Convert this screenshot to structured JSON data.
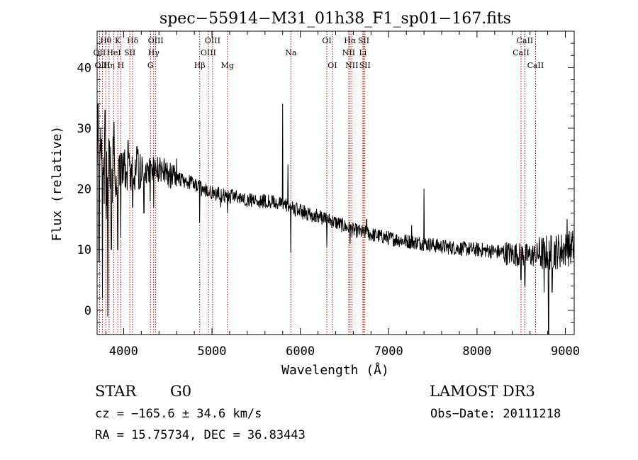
{
  "chart_data": {
    "type": "line",
    "title": "spec−55914−M31_01h38_F1_sp01−167.fits",
    "xlabel": "Wavelength (Å)",
    "ylabel": "Flux (relative)",
    "xlim": [
      3700,
      9100
    ],
    "ylim": [
      -4,
      46
    ],
    "xticks": [
      4000,
      5000,
      6000,
      7000,
      8000,
      9000
    ],
    "xtick_labels": [
      "4000",
      "5000",
      "6000",
      "7000",
      "8000",
      "9000"
    ],
    "yticks": [
      0,
      10,
      20,
      30,
      40
    ],
    "ytick_labels": [
      "0",
      "10",
      "20",
      "30",
      "40"
    ],
    "continuum": [
      [
        3700,
        22
      ],
      [
        3800,
        21
      ],
      [
        3900,
        22
      ],
      [
        4000,
        23
      ],
      [
        4100,
        23.2
      ],
      [
        4200,
        23
      ],
      [
        4400,
        23
      ],
      [
        4600,
        21.8
      ],
      [
        4800,
        20.8
      ],
      [
        4900,
        19.8
      ],
      [
        5000,
        19.3
      ],
      [
        5200,
        18.8
      ],
      [
        5400,
        18.2
      ],
      [
        5600,
        18
      ],
      [
        5800,
        17.5
      ],
      [
        6000,
        16.3
      ],
      [
        6200,
        15.5
      ],
      [
        6400,
        14.5
      ],
      [
        6600,
        13.2
      ],
      [
        6800,
        12.5
      ],
      [
        7000,
        11.9
      ],
      [
        7200,
        11.4
      ],
      [
        7400,
        11
      ],
      [
        7600,
        10.5
      ],
      [
        7800,
        10.2
      ],
      [
        8000,
        10
      ],
      [
        8200,
        9.7
      ],
      [
        8400,
        9.3
      ],
      [
        8600,
        9
      ],
      [
        8800,
        9.5
      ],
      [
        9000,
        10
      ],
      [
        9100,
        10.5
      ]
    ],
    "features": [
      [
        3710,
        34
      ],
      [
        3722,
        8
      ],
      [
        3740,
        30
      ],
      [
        3760,
        2
      ],
      [
        3790,
        33
      ],
      [
        3820,
        -1
      ],
      [
        3835,
        28
      ],
      [
        3862,
        10
      ],
      [
        3890,
        31
      ],
      [
        3934,
        10
      ],
      [
        3968,
        12
      ],
      [
        4005,
        26
      ],
      [
        4050,
        28
      ],
      [
        4102,
        17
      ],
      [
        4150,
        27
      ],
      [
        4230,
        16
      ],
      [
        4300,
        18
      ],
      [
        4341,
        17
      ],
      [
        4400,
        24
      ],
      [
        4470,
        23
      ],
      [
        4600,
        25
      ],
      [
        4861,
        14.5
      ],
      [
        5100,
        17
      ],
      [
        5175,
        16
      ],
      [
        5800,
        34
      ],
      [
        5860,
        24
      ],
      [
        5893,
        9.5
      ],
      [
        6300,
        10.5
      ],
      [
        6563,
        11
      ],
      [
        6750,
        15
      ],
      [
        7260,
        14
      ],
      [
        7400,
        20
      ],
      [
        8498,
        5
      ],
      [
        8542,
        4
      ],
      [
        8662,
        8
      ],
      [
        8760,
        3
      ],
      [
        8810,
        -4
      ],
      [
        8850,
        3
      ],
      [
        9020,
        15
      ]
    ],
    "lines": [
      {
        "name": "Hθ",
        "wave": 3798,
        "row": 0
      },
      {
        "name": "K",
        "wave": 3934,
        "row": 0
      },
      {
        "name": "Hδ",
        "wave": 4102,
        "row": 0
      },
      {
        "name": "OIII",
        "wave": 4363,
        "row": 0
      },
      {
        "name": "OIII",
        "wave": 5007,
        "row": 0
      },
      {
        "name": "OI",
        "wave": 6300,
        "row": 0
      },
      {
        "name": "Hα",
        "wave": 6563,
        "row": 0
      },
      {
        "name": "SII",
        "wave": 6717,
        "row": 0
      },
      {
        "name": "CaII",
        "wave": 8542,
        "row": 0
      },
      {
        "name": "OII",
        "wave": 3727,
        "row": 1
      },
      {
        "name": "HeI",
        "wave": 3889,
        "row": 1
      },
      {
        "name": "SII",
        "wave": 4070,
        "row": 1
      },
      {
        "name": "Hγ",
        "wave": 4340,
        "row": 1
      },
      {
        "name": "OIII",
        "wave": 4959,
        "row": 1
      },
      {
        "name": "Na",
        "wave": 5893,
        "row": 1
      },
      {
        "name": "NII",
        "wave": 6548,
        "row": 1
      },
      {
        "name": "Li",
        "wave": 6708,
        "row": 1
      },
      {
        "name": "CaII",
        "wave": 8498,
        "row": 1
      },
      {
        "name": "OIII",
        "wave": 3760,
        "row": 2
      },
      {
        "name": "Hη",
        "wave": 3835,
        "row": 2
      },
      {
        "name": "H",
        "wave": 3968,
        "row": 2
      },
      {
        "name": "G",
        "wave": 4304,
        "row": 2
      },
      {
        "name": "Hβ",
        "wave": 4861,
        "row": 2
      },
      {
        "name": "Mg",
        "wave": 5175,
        "row": 2
      },
      {
        "name": "OI",
        "wave": 6363,
        "row": 2
      },
      {
        "name": "NII",
        "wave": 6583,
        "row": 2
      },
      {
        "name": "SII",
        "wave": 6731,
        "row": 2
      },
      {
        "name": "CaII",
        "wave": 8662,
        "row": 2
      }
    ],
    "line_color": "#b00000",
    "series_color": "#000000"
  },
  "info": {
    "object_class": "STAR",
    "subclass": "G0",
    "survey": "LAMOST DR3",
    "cz": "cz = −165.6 ± 34.6 km/s",
    "obs_date": "Obs−Date: 20111218",
    "coords": "RA =  15.75734, DEC =  36.83443"
  }
}
